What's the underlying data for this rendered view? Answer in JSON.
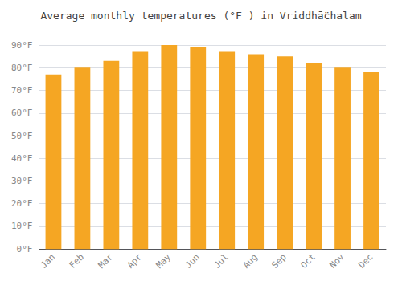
{
  "chart_data": {
    "type": "bar",
    "title": "Average monthly temperatures (°F ) in Vriddhā̈chalam",
    "categories": [
      "Jan",
      "Feb",
      "Mar",
      "Apr",
      "May",
      "Jun",
      "Jul",
      "Aug",
      "Sep",
      "Oct",
      "Nov",
      "Dec"
    ],
    "values": [
      77,
      80,
      83,
      87,
      90,
      89,
      87,
      86,
      85,
      82,
      80,
      78
    ],
    "color": "#F5A623",
    "ylim": [
      0,
      95
    ],
    "yticks": [
      {
        "value": 0,
        "label": "0°F"
      },
      {
        "value": 10,
        "label": "10°F"
      },
      {
        "value": 20,
        "label": "20°F"
      },
      {
        "value": 30,
        "label": "30°F"
      },
      {
        "value": 40,
        "label": "40°F"
      },
      {
        "value": 50,
        "label": "50°F"
      },
      {
        "value": 60,
        "label": "60°F"
      },
      {
        "value": 70,
        "label": "70°F"
      },
      {
        "value": 80,
        "label": "80°F"
      },
      {
        "value": 90,
        "label": "90°F"
      }
    ],
    "grid": true
  }
}
